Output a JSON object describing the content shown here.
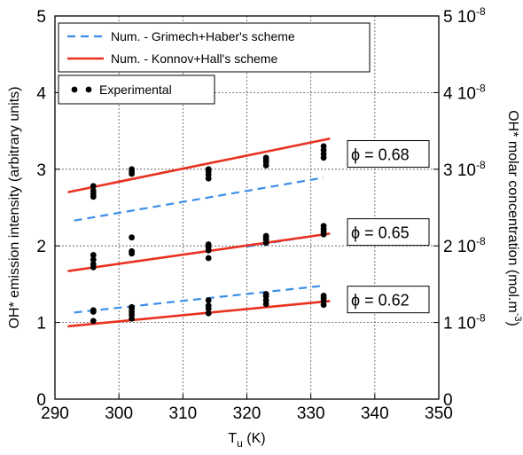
{
  "chart_data": {
    "type": "line",
    "x_label_main": "T",
    "x_label_sub": "u",
    "x_label_rest": " (K)",
    "y_label_left": "OH* emission intensity (arbitrary units)",
    "y_label_right_main": "OH* molar concentration (mol.m",
    "y_label_right_sup": "-3",
    "y_label_right_end": ")",
    "xlim": [
      290,
      350
    ],
    "ylim": [
      0,
      5
    ],
    "ylim_right": [
      0,
      5e-08
    ],
    "x_ticks": [
      "290",
      "300",
      "310",
      "320",
      "330",
      "340",
      "350"
    ],
    "x_tick_values": [
      290,
      300,
      310,
      320,
      330,
      340,
      350
    ],
    "y_ticks": [
      "0",
      "1",
      "2",
      "3",
      "4",
      "5"
    ],
    "y_tick_values": [
      0,
      1,
      2,
      3,
      4,
      5
    ],
    "y_right_ticks": [
      {
        "main": "0",
        "sup": ""
      },
      {
        "main": "1 10",
        "sup": "-8"
      },
      {
        "main": "2 10",
        "sup": "-8"
      },
      {
        "main": "3 10",
        "sup": "-8"
      },
      {
        "main": "4 10",
        "sup": "-8"
      },
      {
        "main": "5 10",
        "sup": "-8"
      }
    ],
    "grid": true,
    "legend": [
      {
        "label": "Num. - Grimech+Haber's scheme",
        "style": "dashed",
        "color": "#3b8ee8"
      },
      {
        "label": "Num. - Konnov+Hall's scheme",
        "style": "solid",
        "color": "#e8311e"
      },
      {
        "label": "Experimental",
        "style": "marker",
        "color": "#000000"
      }
    ],
    "legend_position": "top-left",
    "series": [
      {
        "name": "Num. - Grimech+Haber's scheme",
        "group": "0.68",
        "style": "dashed",
        "color": "#3b8ee8",
        "x": [
          293,
          332
        ],
        "y": [
          2.33,
          2.89
        ]
      },
      {
        "name": "Num. - Grimech+Haber's scheme",
        "group": "0.65",
        "style": "dashed",
        "color": "#3b8ee8",
        "x": [
          320,
          332
        ],
        "y": [
          1.99,
          2.15
        ]
      },
      {
        "name": "Num. - Grimech+Haber's scheme",
        "group": "0.62",
        "style": "dashed",
        "color": "#3b8ee8",
        "x": [
          293,
          332
        ],
        "y": [
          1.13,
          1.48
        ]
      },
      {
        "name": "Num. - Konnov+Hall's scheme",
        "group": "0.68",
        "style": "solid",
        "color": "#e8311e",
        "x": [
          292,
          333
        ],
        "y": [
          2.7,
          3.4
        ]
      },
      {
        "name": "Num. - Konnov+Hall's scheme",
        "group": "0.65",
        "style": "solid",
        "color": "#e8311e",
        "x": [
          292,
          333
        ],
        "y": [
          1.67,
          2.16
        ]
      },
      {
        "name": "Num. - Konnov+Hall's scheme",
        "group": "0.62",
        "style": "solid",
        "color": "#e8311e",
        "x": [
          292,
          333
        ],
        "y": [
          0.95,
          1.28
        ]
      }
    ],
    "experimental": {
      "x": [
        296,
        296,
        296,
        296,
        296,
        296,
        296,
        296,
        296,
        296,
        296,
        296,
        302,
        302,
        302,
        302,
        302,
        302,
        302,
        302,
        302,
        302,
        302,
        314,
        314,
        314,
        314,
        314,
        314,
        314,
        314,
        314,
        314,
        314,
        314,
        323,
        323,
        323,
        323,
        323,
        323,
        323,
        323,
        323,
        323,
        323,
        323,
        332,
        332,
        332,
        332,
        332,
        332,
        332,
        332,
        332,
        332,
        332,
        332
      ],
      "y": [
        2.64,
        2.68,
        2.72,
        2.78,
        1.72,
        1.76,
        1.82,
        1.88,
        1.02,
        1.14,
        1.15,
        1.16,
        2.94,
        2.97,
        3.0,
        2.11,
        1.9,
        1.93,
        1.05,
        1.1,
        1.14,
        1.18,
        1.2,
        2.88,
        2.93,
        2.97,
        3.0,
        1.84,
        1.94,
        1.98,
        2.02,
        1.12,
        1.18,
        1.22,
        1.29,
        3.05,
        3.09,
        3.12,
        3.15,
        2.04,
        2.08,
        2.11,
        2.13,
        1.24,
        1.29,
        1.34,
        1.37,
        3.15,
        3.2,
        3.25,
        3.3,
        2.15,
        2.18,
        2.22,
        2.26,
        1.23,
        1.28,
        1.32,
        1.35
      ]
    },
    "annotations": [
      {
        "label": "ϕ = 0.68",
        "at_y": 3.2
      },
      {
        "label": "ϕ = 0.65",
        "at_y": 2.18
      },
      {
        "label": "ϕ = 0.62",
        "at_y": 1.3
      }
    ]
  }
}
